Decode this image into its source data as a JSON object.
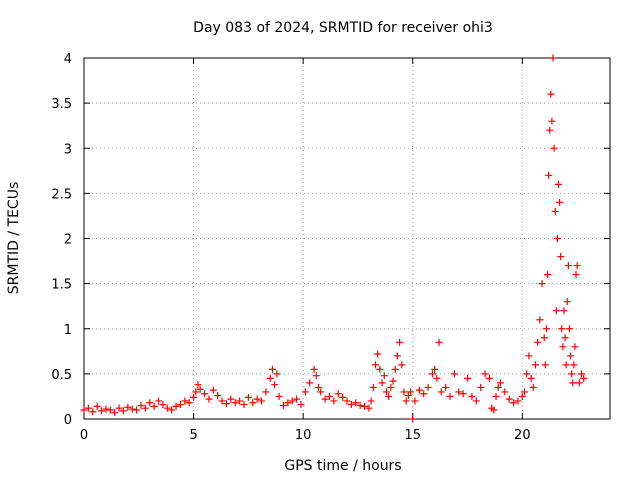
{
  "chart_data": {
    "type": "scatter",
    "title": "Day 083 of 2024, SRMTID for receiver ohi3",
    "xlabel": "GPS time / hours",
    "ylabel": "SRMTID / TECUs",
    "xlim": [
      0,
      24
    ],
    "ylim": [
      0,
      4
    ],
    "xticks": [
      0,
      5,
      10,
      15,
      20
    ],
    "yticks": [
      0,
      0.5,
      1,
      1.5,
      2,
      2.5,
      3,
      3.5,
      4
    ],
    "x_tick_labels": [
      "0",
      "5",
      "10",
      "15",
      "20"
    ],
    "y_tick_labels": [
      "0",
      "0.5",
      "1",
      "1.5",
      "2",
      "2.5",
      "3",
      "3.5",
      "4"
    ],
    "grid": true,
    "marker": "plus",
    "color": "#ff0000",
    "series": [
      {
        "name": "SRMTID",
        "x": [
          0.0,
          0.2,
          0.4,
          0.6,
          0.8,
          1.0,
          1.2,
          1.4,
          1.6,
          1.8,
          2.0,
          2.2,
          2.4,
          2.6,
          2.8,
          3.0,
          3.2,
          3.4,
          3.6,
          3.8,
          4.0,
          4.2,
          4.4,
          4.6,
          4.8,
          5.0,
          5.1,
          5.2,
          5.3,
          5.5,
          5.7,
          5.9,
          6.1,
          6.3,
          6.5,
          6.7,
          6.9,
          7.1,
          7.3,
          7.5,
          7.7,
          7.9,
          8.1,
          8.3,
          8.5,
          8.6,
          8.7,
          8.8,
          8.9,
          9.1,
          9.3,
          9.5,
          9.7,
          9.9,
          10.1,
          10.3,
          10.5,
          10.6,
          10.7,
          10.8,
          11.0,
          11.2,
          11.4,
          11.6,
          11.8,
          12.0,
          12.2,
          12.4,
          12.6,
          12.8,
          13.0,
          13.1,
          13.2,
          13.3,
          13.4,
          13.5,
          13.6,
          13.7,
          13.8,
          13.9,
          14.0,
          14.1,
          14.2,
          14.3,
          14.4,
          14.5,
          14.6,
          14.7,
          14.8,
          14.9,
          15.0,
          15.1,
          15.3,
          15.5,
          15.7,
          15.9,
          16.0,
          16.1,
          16.2,
          16.3,
          16.5,
          16.7,
          16.9,
          17.1,
          17.3,
          17.5,
          17.7,
          17.9,
          18.1,
          18.3,
          18.5,
          18.6,
          18.7,
          18.8,
          18.9,
          19.0,
          19.2,
          19.4,
          19.6,
          19.8,
          20.0,
          20.1,
          20.2,
          20.3,
          20.4,
          20.5,
          20.6,
          20.7,
          20.8,
          20.9,
          21.0,
          21.05,
          21.1,
          21.15,
          21.2,
          21.25,
          21.3,
          21.35,
          21.4,
          21.45,
          21.5,
          21.55,
          21.6,
          21.65,
          21.7,
          21.75,
          21.8,
          21.85,
          21.9,
          21.95,
          22.0,
          22.05,
          22.1,
          22.15,
          22.2,
          22.25,
          22.3,
          22.35,
          22.4,
          22.45,
          22.5,
          22.6,
          22.7,
          22.8
        ],
        "y": [
          0.1,
          0.12,
          0.08,
          0.14,
          0.09,
          0.11,
          0.1,
          0.07,
          0.12,
          0.09,
          0.13,
          0.11,
          0.1,
          0.15,
          0.12,
          0.18,
          0.14,
          0.2,
          0.16,
          0.12,
          0.1,
          0.14,
          0.16,
          0.2,
          0.18,
          0.24,
          0.3,
          0.38,
          0.33,
          0.28,
          0.22,
          0.32,
          0.26,
          0.2,
          0.17,
          0.22,
          0.18,
          0.2,
          0.16,
          0.24,
          0.18,
          0.22,
          0.2,
          0.3,
          0.45,
          0.55,
          0.38,
          0.5,
          0.25,
          0.15,
          0.18,
          0.2,
          0.22,
          0.16,
          0.3,
          0.4,
          0.55,
          0.48,
          0.35,
          0.3,
          0.22,
          0.25,
          0.2,
          0.28,
          0.24,
          0.2,
          0.16,
          0.18,
          0.15,
          0.14,
          0.12,
          0.2,
          0.35,
          0.6,
          0.72,
          0.55,
          0.4,
          0.48,
          0.3,
          0.25,
          0.35,
          0.42,
          0.55,
          0.7,
          0.85,
          0.6,
          0.3,
          0.2,
          0.26,
          0.3,
          0.0,
          0.2,
          0.32,
          0.28,
          0.35,
          0.5,
          0.55,
          0.45,
          0.85,
          0.3,
          0.35,
          0.25,
          0.5,
          0.3,
          0.28,
          0.45,
          0.25,
          0.2,
          0.35,
          0.5,
          0.45,
          0.12,
          0.1,
          0.25,
          0.35,
          0.4,
          0.3,
          0.22,
          0.18,
          0.2,
          0.25,
          0.3,
          0.5,
          0.7,
          0.45,
          0.35,
          0.6,
          0.85,
          1.1,
          1.5,
          0.9,
          0.6,
          1.0,
          1.6,
          2.7,
          3.2,
          3.6,
          3.3,
          4.0,
          3.0,
          2.3,
          1.2,
          2.0,
          2.6,
          2.4,
          1.8,
          1.0,
          0.8,
          1.2,
          0.9,
          0.6,
          1.3,
          1.7,
          1.0,
          0.7,
          0.5,
          0.4,
          0.6,
          0.8,
          1.6,
          1.7,
          0.4,
          0.5,
          0.45
        ]
      }
    ]
  }
}
